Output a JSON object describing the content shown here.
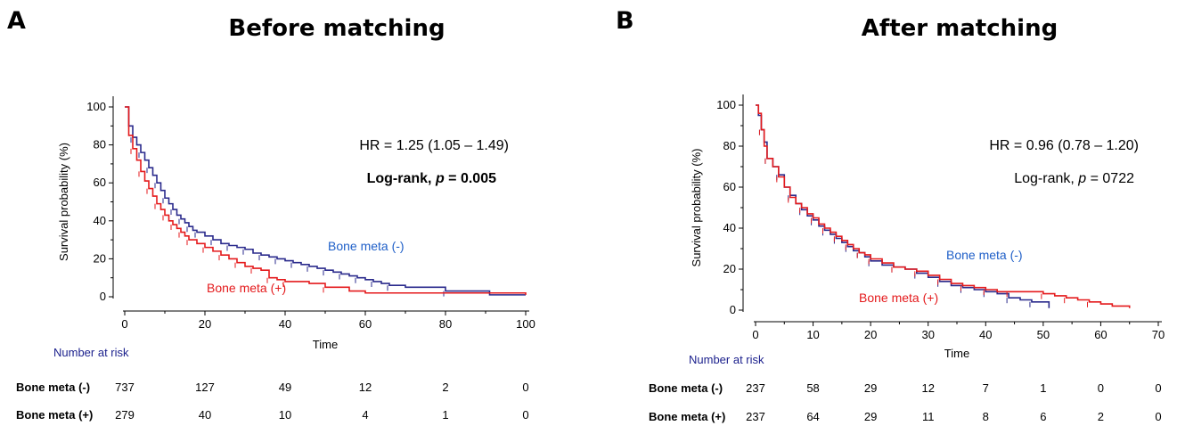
{
  "panels": [
    {
      "letter": "A",
      "title": "Before matching",
      "annotation": {
        "hr": "HR = 1.25 (1.05 – 1.49)",
        "logrank_prefix": "Log-rank, ",
        "p_label": "p",
        "p_value": " = 0.005",
        "bold": true
      },
      "risk_table": {
        "title": "Number at risk",
        "rows": [
          {
            "label": "Bone meta (-)",
            "values": [
              "737",
              "127",
              "49",
              "12",
              "2",
              "0"
            ]
          },
          {
            "label": "Bone meta (+)",
            "values": [
              "279",
              "40",
              "10",
              "4",
              "1",
              "0"
            ]
          }
        ]
      }
    },
    {
      "letter": "B",
      "title": "After matching",
      "annotation": {
        "hr": "HR = 0.96 (0.78 – 1.20)",
        "logrank_prefix": "Log-rank, ",
        "p_label": "p",
        "p_value": " = 0722",
        "bold": false
      },
      "risk_table": {
        "title": "Number at risk",
        "rows": [
          {
            "label": "Bone meta (-)",
            "values": [
              "237",
              "58",
              "29",
              "12",
              "7",
              "1",
              "0",
              "0"
            ]
          },
          {
            "label": "Bone meta (+)",
            "values": [
              "237",
              "64",
              "29",
              "11",
              "8",
              "6",
              "2",
              "0"
            ]
          }
        ]
      }
    }
  ],
  "chart_data": [
    {
      "type": "line",
      "step": true,
      "title": "Before matching",
      "xlabel": "Time",
      "ylabel": "Survival probability (%)",
      "xlim": [
        0,
        100
      ],
      "ylim": [
        0,
        100
      ],
      "xticks": [
        0,
        20,
        40,
        60,
        80,
        100
      ],
      "yticks": [
        0,
        20,
        40,
        60,
        80,
        100
      ],
      "series": [
        {
          "name": "Bone meta (-)",
          "color": "#2a2a8c",
          "label_color": "#1f5fc8",
          "points": [
            [
              0,
              100
            ],
            [
              1,
              90
            ],
            [
              2,
              84
            ],
            [
              3,
              80
            ],
            [
              4,
              76
            ],
            [
              5,
              72
            ],
            [
              6,
              68
            ],
            [
              7,
              64
            ],
            [
              8,
              60
            ],
            [
              9,
              56
            ],
            [
              10,
              52
            ],
            [
              11,
              49
            ],
            [
              12,
              46
            ],
            [
              13,
              43
            ],
            [
              14,
              41
            ],
            [
              15,
              39
            ],
            [
              16,
              37
            ],
            [
              17,
              35
            ],
            [
              18,
              34
            ],
            [
              20,
              32
            ],
            [
              22,
              30
            ],
            [
              24,
              28
            ],
            [
              26,
              27
            ],
            [
              28,
              26
            ],
            [
              30,
              25
            ],
            [
              32,
              23
            ],
            [
              34,
              22
            ],
            [
              36,
              21
            ],
            [
              38,
              20
            ],
            [
              40,
              19
            ],
            [
              42,
              18
            ],
            [
              44,
              17
            ],
            [
              46,
              16
            ],
            [
              48,
              15
            ],
            [
              50,
              14
            ],
            [
              52,
              13
            ],
            [
              54,
              12
            ],
            [
              56,
              11
            ],
            [
              58,
              10
            ],
            [
              60,
              9
            ],
            [
              62,
              8
            ],
            [
              64,
              7
            ],
            [
              66,
              6
            ],
            [
              70,
              5
            ],
            [
              80,
              3
            ],
            [
              90,
              3
            ],
            [
              91,
              1
            ],
            [
              100,
              1
            ]
          ]
        },
        {
          "name": "Bone meta (+)",
          "color": "#e41a1c",
          "label_color": "#e41a1c",
          "points": [
            [
              0,
              100
            ],
            [
              1,
              85
            ],
            [
              2,
              78
            ],
            [
              3,
              72
            ],
            [
              4,
              66
            ],
            [
              5,
              61
            ],
            [
              6,
              57
            ],
            [
              7,
              53
            ],
            [
              8,
              49
            ],
            [
              9,
              46
            ],
            [
              10,
              43
            ],
            [
              11,
              40
            ],
            [
              12,
              38
            ],
            [
              13,
              36
            ],
            [
              14,
              34
            ],
            [
              15,
              32
            ],
            [
              16,
              30
            ],
            [
              18,
              28
            ],
            [
              20,
              26
            ],
            [
              22,
              24
            ],
            [
              24,
              22
            ],
            [
              26,
              20
            ],
            [
              28,
              18
            ],
            [
              30,
              16
            ],
            [
              32,
              15
            ],
            [
              34,
              14
            ],
            [
              36,
              10
            ],
            [
              38,
              9
            ],
            [
              40,
              8
            ],
            [
              46,
              7
            ],
            [
              50,
              5
            ],
            [
              56,
              3
            ],
            [
              60,
              2
            ],
            [
              80,
              2
            ],
            [
              100,
              1
            ]
          ]
        }
      ]
    },
    {
      "type": "line",
      "step": true,
      "title": "After matching",
      "xlabel": "Time",
      "ylabel": "Survival probability (%)",
      "xlim": [
        0,
        70
      ],
      "ylim": [
        0,
        100
      ],
      "xticks": [
        0,
        10,
        20,
        30,
        40,
        50,
        60,
        70
      ],
      "yticks": [
        0,
        20,
        40,
        60,
        80,
        100
      ],
      "series": [
        {
          "name": "Bone meta (-)",
          "color": "#2a2a8c",
          "label_color": "#1f5fc8",
          "points": [
            [
              0,
              100
            ],
            [
              0.5,
              95
            ],
            [
              1,
              88
            ],
            [
              1.5,
              82
            ],
            [
              2,
              74
            ],
            [
              3,
              70
            ],
            [
              4,
              66
            ],
            [
              5,
              60
            ],
            [
              6,
              56
            ],
            [
              7,
              52
            ],
            [
              8,
              49
            ],
            [
              9,
              46
            ],
            [
              10,
              44
            ],
            [
              11,
              41
            ],
            [
              12,
              39
            ],
            [
              13,
              37
            ],
            [
              14,
              35
            ],
            [
              15,
              33
            ],
            [
              16,
              31
            ],
            [
              17,
              29
            ],
            [
              18,
              28
            ],
            [
              19,
              26
            ],
            [
              20,
              24
            ],
            [
              22,
              22
            ],
            [
              24,
              21
            ],
            [
              26,
              20
            ],
            [
              28,
              18
            ],
            [
              30,
              16
            ],
            [
              32,
              14
            ],
            [
              34,
              12
            ],
            [
              36,
              11
            ],
            [
              38,
              10
            ],
            [
              40,
              9
            ],
            [
              42,
              8
            ],
            [
              44,
              6
            ],
            [
              46,
              5
            ],
            [
              48,
              4
            ],
            [
              51,
              1
            ]
          ]
        },
        {
          "name": "Bone meta (+)",
          "color": "#e41a1c",
          "label_color": "#e41a1c",
          "points": [
            [
              0,
              100
            ],
            [
              0.5,
              96
            ],
            [
              1,
              88
            ],
            [
              1.5,
              80
            ],
            [
              2,
              74
            ],
            [
              3,
              70
            ],
            [
              4,
              65
            ],
            [
              5,
              60
            ],
            [
              6,
              55
            ],
            [
              7,
              52
            ],
            [
              8,
              50
            ],
            [
              9,
              47
            ],
            [
              10,
              45
            ],
            [
              11,
              42
            ],
            [
              12,
              40
            ],
            [
              13,
              38
            ],
            [
              14,
              36
            ],
            [
              15,
              34
            ],
            [
              16,
              32
            ],
            [
              17,
              30
            ],
            [
              18,
              28
            ],
            [
              19,
              27
            ],
            [
              20,
              25
            ],
            [
              22,
              23
            ],
            [
              24,
              21
            ],
            [
              26,
              20
            ],
            [
              28,
              19
            ],
            [
              30,
              17
            ],
            [
              32,
              15
            ],
            [
              34,
              13
            ],
            [
              36,
              12
            ],
            [
              38,
              11
            ],
            [
              40,
              10
            ],
            [
              42,
              9
            ],
            [
              44,
              9
            ],
            [
              48,
              9
            ],
            [
              50,
              8
            ],
            [
              52,
              7
            ],
            [
              54,
              6
            ],
            [
              56,
              5
            ],
            [
              58,
              4
            ],
            [
              60,
              3
            ],
            [
              62,
              2
            ],
            [
              65,
              1
            ]
          ]
        }
      ]
    }
  ]
}
